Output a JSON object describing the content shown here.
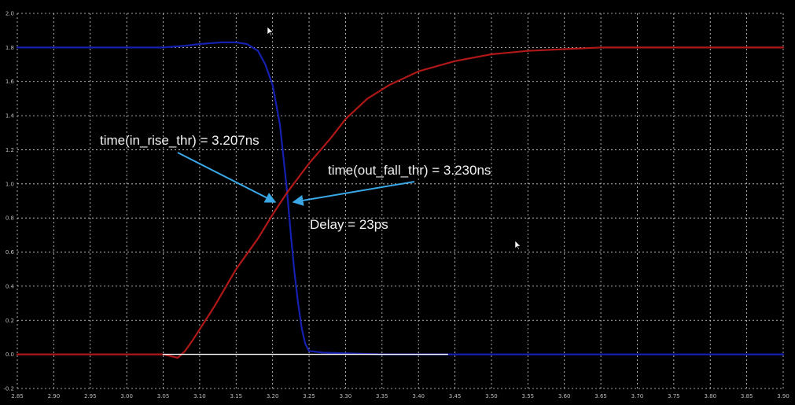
{
  "chart_data": {
    "type": "line",
    "xlim": [
      2.85,
      3.9
    ],
    "ylim": [
      -0.2,
      2.0
    ],
    "grid": true,
    "x_ticks": [
      "2.85",
      "2.90",
      "2.95",
      "3.00",
      "3.05",
      "3.10",
      "3.15",
      "3.20",
      "3.25",
      "3.30",
      "3.35",
      "3.40",
      "3.45",
      "3.50",
      "3.55",
      "3.60",
      "3.65",
      "3.70",
      "3.75",
      "3.80",
      "3.85",
      "3.90"
    ],
    "y_ticks": [
      "2.0",
      "1.8",
      "1.6",
      "1.4",
      "1.2",
      "1.0",
      "0.8",
      "0.6",
      "0.4",
      "0.2",
      "0.0",
      "-0.2"
    ],
    "series": [
      {
        "color": "#1520b0",
        "points": [
          [
            2.85,
            1.8
          ],
          [
            3.05,
            1.8
          ],
          [
            3.08,
            1.81
          ],
          [
            3.1,
            1.82
          ],
          [
            3.13,
            1.83
          ],
          [
            3.15,
            1.83
          ],
          [
            3.165,
            1.82
          ],
          [
            3.18,
            1.78
          ],
          [
            3.19,
            1.7
          ],
          [
            3.2,
            1.58
          ],
          [
            3.21,
            1.35
          ],
          [
            3.215,
            1.15
          ],
          [
            3.22,
            0.95
          ],
          [
            3.225,
            0.7
          ],
          [
            3.23,
            0.48
          ],
          [
            3.235,
            0.3
          ],
          [
            3.24,
            0.15
          ],
          [
            3.245,
            0.06
          ],
          [
            3.25,
            0.02
          ],
          [
            3.27,
            0.01
          ],
          [
            3.35,
            0.0
          ],
          [
            3.9,
            0.0
          ]
        ]
      },
      {
        "color": "#b01818",
        "points": [
          [
            2.85,
            0.0
          ],
          [
            3.05,
            0.0
          ],
          [
            3.06,
            -0.01
          ],
          [
            3.07,
            -0.02
          ],
          [
            3.08,
            0.02
          ],
          [
            3.09,
            0.08
          ],
          [
            3.12,
            0.28
          ],
          [
            3.15,
            0.5
          ],
          [
            3.18,
            0.68
          ],
          [
            3.2,
            0.82
          ],
          [
            3.22,
            0.95
          ],
          [
            3.25,
            1.12
          ],
          [
            3.28,
            1.27
          ],
          [
            3.3,
            1.38
          ],
          [
            3.33,
            1.5
          ],
          [
            3.36,
            1.58
          ],
          [
            3.4,
            1.66
          ],
          [
            3.45,
            1.72
          ],
          [
            3.5,
            1.76
          ],
          [
            3.55,
            1.78
          ],
          [
            3.6,
            1.79
          ],
          [
            3.65,
            1.8
          ],
          [
            3.9,
            1.8
          ]
        ]
      },
      {
        "color": "#ffffff",
        "points": [
          [
            3.05,
            0.0
          ],
          [
            3.44,
            0.0
          ]
        ]
      }
    ],
    "annotations": [
      {
        "text": "time(in_rise_thr) = 3.207ns"
      },
      {
        "text": "time(out_fall_thr) = 3.230ns"
      },
      {
        "text": "Delay = 23ps"
      }
    ],
    "annotation_color": "#3aa7e6",
    "grid_color": "#d8d8d8"
  }
}
